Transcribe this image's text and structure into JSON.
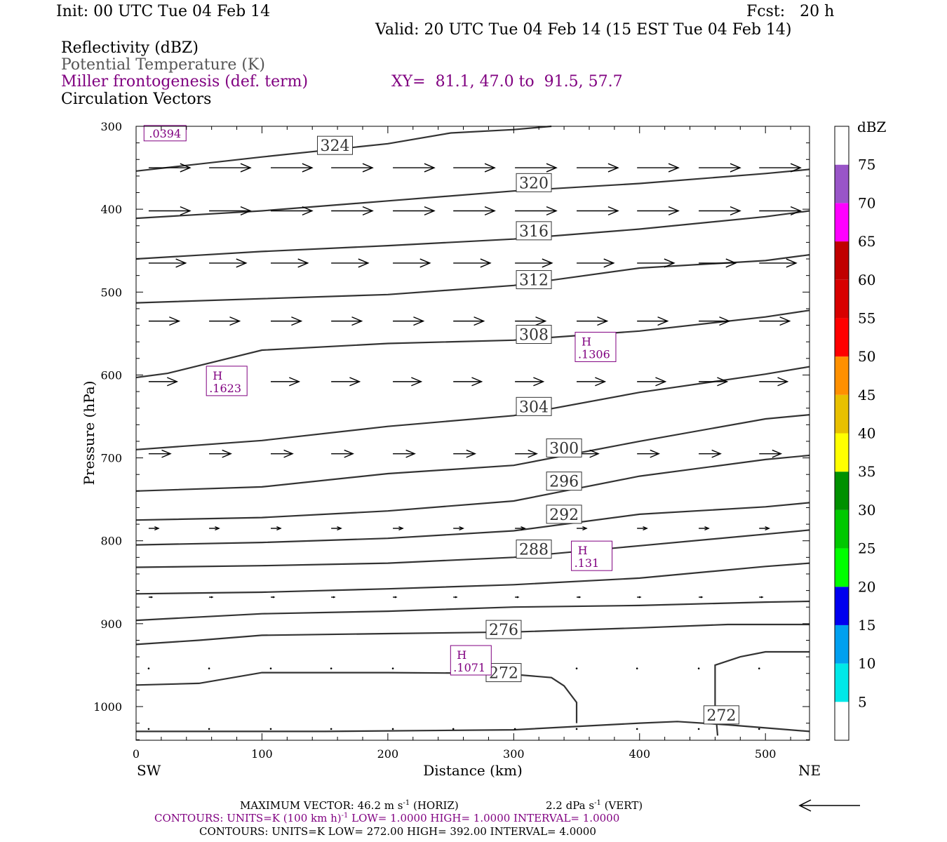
{
  "header": {
    "init": "Init: 00 UTC Tue 04 Feb 14",
    "fcst": "Fcst:   20 h",
    "valid": "Valid: 20 UTC Tue 04 Feb 14 (15 EST Tue 04 Feb 14)",
    "field1": "Reflectivity (dBZ)",
    "field2": "Potential Temperature (K)",
    "field3": "Miller frontogenesis (def. term)",
    "xy": "XY=  81.1, 47.0 to  91.5, 57.7",
    "field4": "Circulation Vectors"
  },
  "colors": {
    "frontogenesis": "#800080",
    "theta": "#555555",
    "vectors": "#000000"
  },
  "chart_data": {
    "type": "cross-section",
    "xlabel": "Distance (km)",
    "ylabel": "Pressure (hPa)",
    "x_ticks": [
      0,
      100,
      200,
      300,
      400,
      500
    ],
    "y_ticks": [
      300,
      400,
      500,
      600,
      700,
      800,
      900,
      1000
    ],
    "xlim": [
      0,
      535
    ],
    "ylim": [
      300,
      1040
    ],
    "y_reversed": true,
    "left_end_label": "SW",
    "right_end_label": "NE",
    "theta_contours": [
      {
        "label": "324",
        "points": [
          [
            0,
            354
          ],
          [
            100,
            337
          ],
          [
            200,
            321
          ],
          [
            250,
            308
          ],
          [
            300,
            304
          ],
          [
            330,
            300
          ]
        ],
        "label_at": [
          158,
          323
        ]
      },
      {
        "label": "320",
        "points": [
          [
            0,
            411
          ],
          [
            100,
            402
          ],
          [
            200,
            390
          ],
          [
            300,
            378
          ],
          [
            400,
            369
          ],
          [
            500,
            357
          ],
          [
            535,
            352
          ]
        ],
        "label_at": [
          316,
          368
        ]
      },
      {
        "label": "316",
        "points": [
          [
            0,
            460
          ],
          [
            100,
            451
          ],
          [
            200,
            444
          ],
          [
            300,
            436
          ],
          [
            400,
            424
          ],
          [
            500,
            409
          ],
          [
            535,
            402
          ]
        ],
        "label_at": [
          316,
          426
        ]
      },
      {
        "label": "312",
        "points": [
          [
            0,
            513
          ],
          [
            100,
            508
          ],
          [
            200,
            503
          ],
          [
            300,
            492
          ],
          [
            400,
            471
          ],
          [
            500,
            462
          ],
          [
            535,
            455
          ]
        ],
        "label_at": [
          316,
          485
        ]
      },
      {
        "label": "308",
        "points": [
          [
            0,
            603
          ],
          [
            25,
            598
          ],
          [
            100,
            570
          ],
          [
            200,
            562
          ],
          [
            300,
            558
          ],
          [
            400,
            547
          ],
          [
            500,
            530
          ],
          [
            535,
            522
          ]
        ],
        "label_at": [
          316,
          551
        ]
      },
      {
        "label": "304",
        "points": [
          [
            0,
            690
          ],
          [
            100,
            679
          ],
          [
            200,
            662
          ],
          [
            300,
            649
          ],
          [
            400,
            621
          ],
          [
            500,
            599
          ],
          [
            535,
            590
          ]
        ],
        "label_at": [
          316,
          638
        ]
      },
      {
        "label": "300",
        "points": [
          [
            0,
            740
          ],
          [
            100,
            735
          ],
          [
            200,
            719
          ],
          [
            300,
            709
          ],
          [
            400,
            680
          ],
          [
            500,
            653
          ],
          [
            535,
            648
          ]
        ],
        "label_at": [
          340,
          688
        ]
      },
      {
        "label": "296",
        "points": [
          [
            0,
            775
          ],
          [
            100,
            772
          ],
          [
            200,
            764
          ],
          [
            300,
            752
          ],
          [
            400,
            722
          ],
          [
            500,
            702
          ],
          [
            535,
            697
          ]
        ],
        "label_at": [
          340,
          728
        ]
      },
      {
        "label": "292",
        "points": [
          [
            0,
            805
          ],
          [
            100,
            802
          ],
          [
            200,
            797
          ],
          [
            300,
            788
          ],
          [
            400,
            768
          ],
          [
            500,
            759
          ],
          [
            535,
            754
          ]
        ],
        "label_at": [
          340,
          768
        ]
      },
      {
        "label": "288",
        "points": [
          [
            0,
            832
          ],
          [
            100,
            830
          ],
          [
            200,
            827
          ],
          [
            300,
            820
          ],
          [
            400,
            806
          ],
          [
            500,
            792
          ],
          [
            535,
            787
          ]
        ],
        "label_at": [
          316,
          810
        ]
      },
      {
        "label": "",
        "points": [
          [
            0,
            864
          ],
          [
            100,
            862
          ],
          [
            200,
            858
          ],
          [
            300,
            853
          ],
          [
            400,
            845
          ],
          [
            500,
            831
          ],
          [
            535,
            827
          ]
        ],
        "label_at": null
      },
      {
        "label": "",
        "points": [
          [
            0,
            896
          ],
          [
            100,
            888
          ],
          [
            200,
            885
          ],
          [
            300,
            880
          ],
          [
            400,
            878
          ],
          [
            500,
            874
          ],
          [
            535,
            873
          ]
        ],
        "label_at": null
      },
      {
        "label": "276",
        "points": [
          [
            0,
            925
          ],
          [
            50,
            920
          ],
          [
            100,
            914
          ],
          [
            200,
            912
          ],
          [
            300,
            910
          ],
          [
            400,
            905
          ],
          [
            470,
            901
          ],
          [
            535,
            901
          ]
        ],
        "label_at": [
          292,
          907
        ]
      },
      {
        "label": "272",
        "points": [
          [
            0,
            974
          ],
          [
            50,
            972
          ],
          [
            100,
            959
          ],
          [
            200,
            959
          ],
          [
            290,
            960
          ],
          [
            330,
            965
          ],
          [
            340,
            975
          ],
          [
            350,
            995
          ],
          [
            350,
            1020
          ]
        ],
        "label_at": [
          292,
          959
        ]
      },
      {
        "label": "",
        "points": [
          [
            0,
            1030
          ],
          [
            150,
            1030
          ],
          [
            300,
            1028
          ],
          [
            400,
            1020
          ],
          [
            430,
            1018
          ],
          [
            470,
            1022
          ],
          [
            535,
            1030
          ]
        ],
        "label_at": null
      },
      {
        "label": "272",
        "points": [
          [
            462,
            1035
          ],
          [
            460,
            1000
          ],
          [
            460,
            950
          ],
          [
            480,
            940
          ],
          [
            500,
            934
          ],
          [
            535,
            934
          ]
        ],
        "label_at": [
          465,
          1010
        ]
      }
    ],
    "frontogenesis_labels": [
      {
        "value": ".0394",
        "x": 23,
        "y": 310
      },
      {
        "value": ".1623",
        "x": 72,
        "y": 608
      },
      {
        "value": ".1306",
        "x": 365,
        "y": 567
      },
      {
        "value": ".131",
        "x": 362,
        "y": 819
      },
      {
        "value": ".1071",
        "x": 266,
        "y": 945
      }
    ],
    "high_marker": "H",
    "vector_rows": [
      {
        "p": 350,
        "len": 38
      },
      {
        "p": 402,
        "len": 38
      },
      {
        "p": 465,
        "len": 34
      },
      {
        "p": 535,
        "len": 28
      },
      {
        "p": 608,
        "len": 26
      },
      {
        "p": 695,
        "len": 20
      },
      {
        "p": 785,
        "len": 9
      },
      {
        "p": 868,
        "len": 3
      },
      {
        "p": 954,
        "len": 1
      },
      {
        "p": 1027,
        "len": 1
      }
    ],
    "vector_x": [
      10,
      58,
      107,
      155,
      204,
      252,
      301,
      350,
      398,
      447,
      495
    ],
    "colorbar": {
      "title": "dBZ",
      "ticks": [
        "5",
        "10",
        "15",
        "20",
        "25",
        "30",
        "35",
        "40",
        "45",
        "50",
        "55",
        "60",
        "65",
        "70",
        "75"
      ],
      "colors": [
        "#ffffff",
        "#00e8e8",
        "#00a0f0",
        "#0000f0",
        "#00ff00",
        "#00c800",
        "#009000",
        "#ffff00",
        "#e8c000",
        "#ff9000",
        "#ff0000",
        "#d80000",
        "#c00000",
        "#ff00ff",
        "#9955c8",
        "#ffffff"
      ]
    },
    "footer": {
      "max_vector_label": "MAXIMUM VECTOR:",
      "horiz_value": "46.2 m s",
      "horiz_exp": "-1",
      "horiz_tag": "(HORIZ)",
      "vert_value": "2.2 dPa s",
      "vert_exp": "-1",
      "vert_tag": "(VERT)",
      "contours1_pre": "CONTOURS:  UNITS=K (100 km h)",
      "contours1_exp": "-1",
      "contours1_post": "  LOW=   1.0000       HIGH=   1.0000       INTERVAL=    1.0000",
      "contours2": "CONTOURS:  UNITS=K  LOW=   272.00       HIGH=   392.00       INTERVAL=    4.0000"
    }
  }
}
